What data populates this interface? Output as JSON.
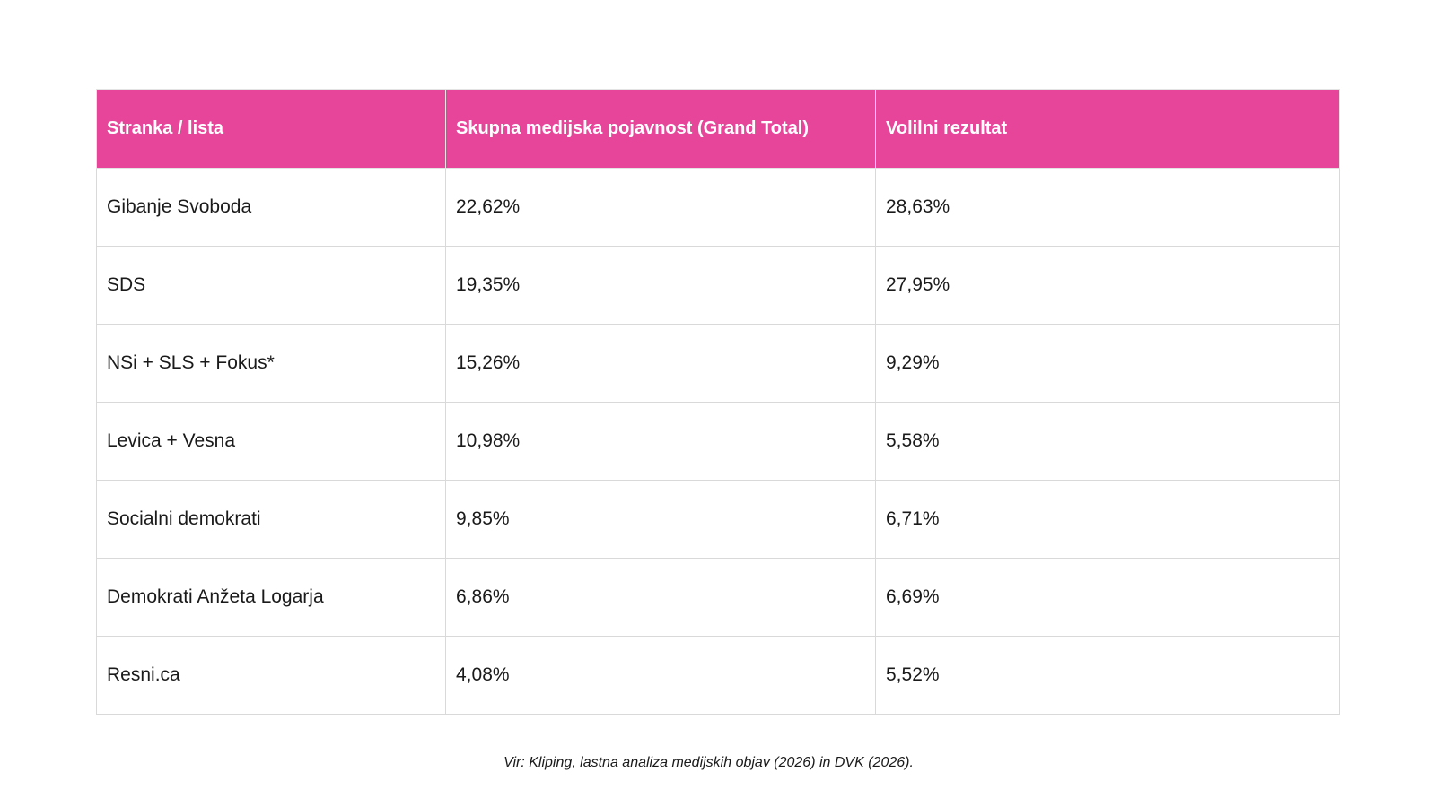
{
  "chart_data": {
    "type": "table",
    "columns": [
      "Stranka / lista",
      "Skupna medijska pojavnost (Grand Total)",
      "Volilni rezultat"
    ],
    "rows": [
      [
        "Gibanje Svoboda",
        "22,62%",
        "28,63%"
      ],
      [
        "SDS",
        "19,35%",
        "27,95%"
      ],
      [
        "NSi + SLS + Fokus*",
        "15,26%",
        "9,29%"
      ],
      [
        "Levica + Vesna",
        "10,98%",
        "5,58%"
      ],
      [
        "Socialni demokrati",
        "9,85%",
        "6,71%"
      ],
      [
        "Demokrati Anžeta Logarja",
        "6,86%",
        "6,69%"
      ],
      [
        "Resni.ca",
        "4,08%",
        "5,52%"
      ]
    ],
    "source_note": "Vir: Kliping, lastna analiza medijskih objav (2026) in DVK (2026).",
    "layout": {
      "header_position": "top",
      "grid": "on",
      "value_format": "percent-comma-decimal"
    }
  },
  "colors": {
    "header_background": "#e6459a",
    "header_text": "#ffffff",
    "body_text": "#1a1a1a",
    "border": "#d9d9d9",
    "page_background": "#ffffff"
  }
}
